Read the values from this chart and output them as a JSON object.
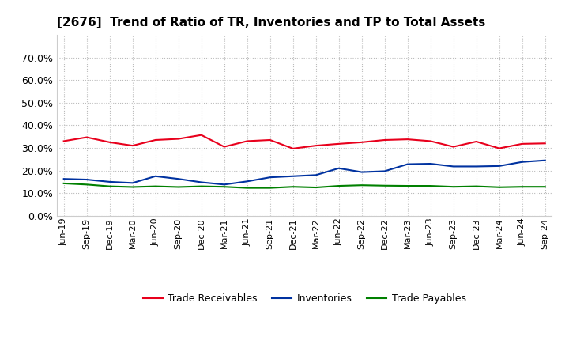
{
  "title": "[2676]  Trend of Ratio of TR, Inventories and TP to Total Assets",
  "x_labels": [
    "Jun-19",
    "Sep-19",
    "Dec-19",
    "Mar-20",
    "Jun-20",
    "Sep-20",
    "Dec-20",
    "Mar-21",
    "Jun-21",
    "Sep-21",
    "Dec-21",
    "Mar-22",
    "Jun-22",
    "Sep-22",
    "Dec-22",
    "Mar-23",
    "Jun-23",
    "Sep-23",
    "Dec-23",
    "Mar-24",
    "Jun-24",
    "Sep-24"
  ],
  "trade_receivables": [
    0.33,
    0.347,
    0.325,
    0.31,
    0.335,
    0.34,
    0.357,
    0.305,
    0.33,
    0.335,
    0.297,
    0.31,
    0.318,
    0.325,
    0.335,
    0.338,
    0.33,
    0.305,
    0.328,
    0.298,
    0.318,
    0.32
  ],
  "inventories": [
    0.163,
    0.16,
    0.15,
    0.145,
    0.175,
    0.163,
    0.148,
    0.138,
    0.152,
    0.17,
    0.175,
    0.18,
    0.21,
    0.193,
    0.197,
    0.228,
    0.23,
    0.218,
    0.218,
    0.22,
    0.238,
    0.245
  ],
  "trade_payables": [
    0.143,
    0.138,
    0.13,
    0.127,
    0.13,
    0.127,
    0.13,
    0.128,
    0.123,
    0.123,
    0.128,
    0.125,
    0.132,
    0.135,
    0.133,
    0.132,
    0.132,
    0.128,
    0.13,
    0.126,
    0.128,
    0.128
  ],
  "color_tr": "#e8001c",
  "color_inv": "#0032a0",
  "color_tp": "#008000",
  "ylim": [
    0.0,
    0.8
  ],
  "yticks": [
    0.0,
    0.1,
    0.2,
    0.3,
    0.4,
    0.5,
    0.6,
    0.7
  ],
  "background_color": "#ffffff",
  "grid_color": "#bbbbbb",
  "legend_tr": "Trade Receivables",
  "legend_inv": "Inventories",
  "legend_tp": "Trade Payables",
  "title_fontsize": 11,
  "tick_fontsize": 8,
  "ytick_fontsize": 9,
  "linewidth": 1.5
}
